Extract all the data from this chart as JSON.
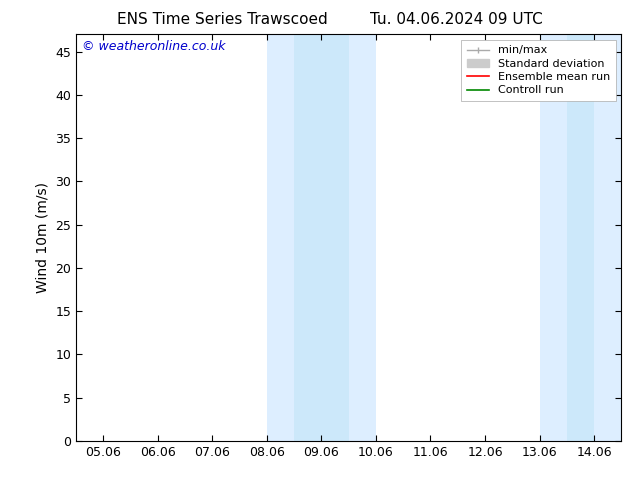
{
  "title_left": "ENS Time Series Trawscoed",
  "title_right": "Tu. 04.06.2024 09 UTC",
  "ylabel": "Wind 10m (m/s)",
  "watermark": "© weatheronline.co.uk",
  "watermark_color": "#0000cc",
  "xtick_labels": [
    "05.06",
    "06.06",
    "07.06",
    "08.06",
    "09.06",
    "10.06",
    "11.06",
    "12.06",
    "13.06",
    "14.06"
  ],
  "xtick_positions": [
    0,
    1,
    2,
    3,
    4,
    5,
    6,
    7,
    8,
    9
  ],
  "ytick_positions": [
    0,
    5,
    10,
    15,
    20,
    25,
    30,
    35,
    40,
    45
  ],
  "ylim": [
    0,
    47
  ],
  "xlim": [
    -0.5,
    9.5
  ],
  "shaded_regions": [
    {
      "x_start": 3.0,
      "x_end": 3.5,
      "color": "#ddeeff"
    },
    {
      "x_start": 3.5,
      "x_end": 4.5,
      "color": "#cce8fa"
    },
    {
      "x_start": 4.5,
      "x_end": 5.0,
      "color": "#ddeeff"
    },
    {
      "x_start": 8.0,
      "x_end": 8.5,
      "color": "#ddeeff"
    },
    {
      "x_start": 8.5,
      "x_end": 9.0,
      "color": "#cce8fa"
    },
    {
      "x_start": 9.0,
      "x_end": 9.5,
      "color": "#ddeeff"
    }
  ],
  "background_color": "#ffffff",
  "plot_bg_color": "#ffffff",
  "legend_minmax_color": "#aaaaaa",
  "legend_std_color": "#cccccc",
  "legend_ensemble_color": "#ff0000",
  "legend_control_color": "#008800",
  "title_fontsize": 11,
  "tick_fontsize": 9,
  "ylabel_fontsize": 10,
  "watermark_fontsize": 9
}
